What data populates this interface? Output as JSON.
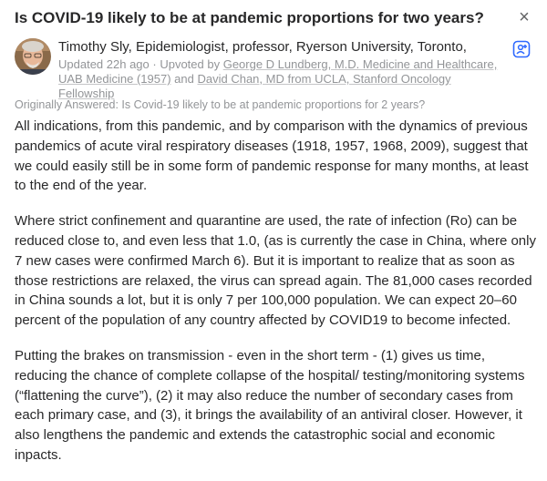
{
  "question": {
    "title": "Is COVID-19 likely to be at pandemic proportions for two years?",
    "close_glyph": "×"
  },
  "author": {
    "credential_line": "Timothy Sly, Epidemiologist, professor, Ryerson University, Toronto,",
    "updated": "Updated 22h ago",
    "separator": " · ",
    "upvoted_prefix": "Upvoted by ",
    "upvoter1": "George D Lundberg, M.D. Medicine and Healthcare, UAB Medicine (1957)",
    "and_text": " and ",
    "upvoter2": "David Chan, MD from UCLA, Stanford Oncology Fellowship"
  },
  "original_question": "Originally Answered: Is Covid-19 likely to be at pandemic proportions for 2 years?",
  "answer": {
    "paragraphs": [
      "All indications, from this pandemic, and by comparison with the dynamics of previous pandemics of acute viral respiratory diseases (1918, 1957, 1968, 2009), suggest that we could easily still be in some form of pandemic response for many months, at least to the end of the year.",
      "Where strict confinement and quarantine are used, the rate of infection (Ro) can be reduced close to, and even less that 1.0, (as is currently the case in China, where only 7 new cases were confirmed March 6). But it is important to realize that as soon as those restrictions are relaxed, the virus can spread again. The 81,000 cases recorded in China sounds a lot, but it is only 7 per 100,000 population. We can expect 20–60 percent of the population of any country affected by COVID19 to become infected.",
      "Putting the brakes on transmission - even in the short term - (1) gives us time, reducing the chance of complete collapse of the hospital/ testing/monitoring systems (“flattening the curve”), (2) it may also reduce the number of secondary cases from each primary case, and (3), it brings the availability of an antiviral closer. However, it also lengthens the pandemic and extends the catastrophic social and economic inpacts."
    ]
  },
  "icons": {
    "close": "close-icon",
    "avatar": "author-photo",
    "side": "share-to-space-icon"
  },
  "colors": {
    "text": "#282829",
    "muted": "#939598",
    "accent": "#2e69ff"
  }
}
